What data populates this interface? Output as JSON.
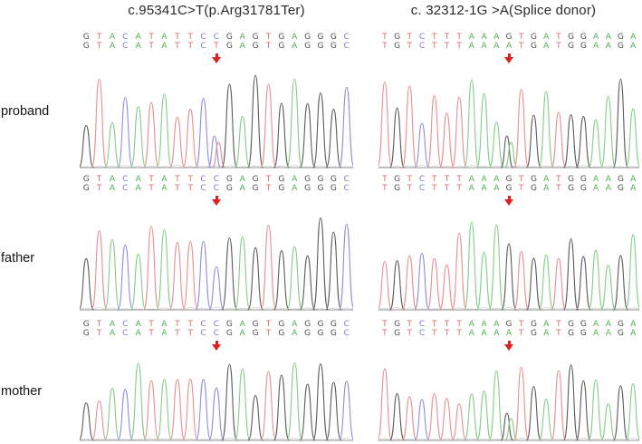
{
  "figure": {
    "row_labels": [
      "proband",
      "father",
      "mother"
    ],
    "arrow_color": "#e02020",
    "base_letter_colors": {
      "A": "#4fae4f",
      "C": "#7b7bd0",
      "G": "#4d4d4d",
      "T": "#e06a6a"
    },
    "trace_colors": {
      "A": "#86cc86",
      "C": "#8d8de0",
      "G": "#5c5c5c",
      "T": "#e89090"
    },
    "panels": {
      "left": {
        "title": "c.95341C>T(p.Arg31781Ter)",
        "sequence": "GTACATATTCCGAGTGAGGGC",
        "arrow_index": 10,
        "rows": [
          {
            "label": "proband",
            "top_base": "C",
            "bottom_base": "T"
          },
          {
            "label": "father",
            "top_base": "C",
            "bottom_base": "C"
          },
          {
            "label": "mother",
            "top_base": "C",
            "bottom_base": "C"
          }
        ]
      },
      "right": {
        "title": "c. 32312-1G >A(Splice donor)",
        "sequence": "TGTCTTTAAAGTGATGGAAGA",
        "arrow_index": 10,
        "rows": [
          {
            "label": "proband",
            "top_base": "G",
            "bottom_base": "A"
          },
          {
            "label": "father",
            "top_base": "G",
            "bottom_base": "G"
          },
          {
            "label": "mother",
            "top_base": "G",
            "bottom_base": "A"
          }
        ]
      }
    }
  }
}
